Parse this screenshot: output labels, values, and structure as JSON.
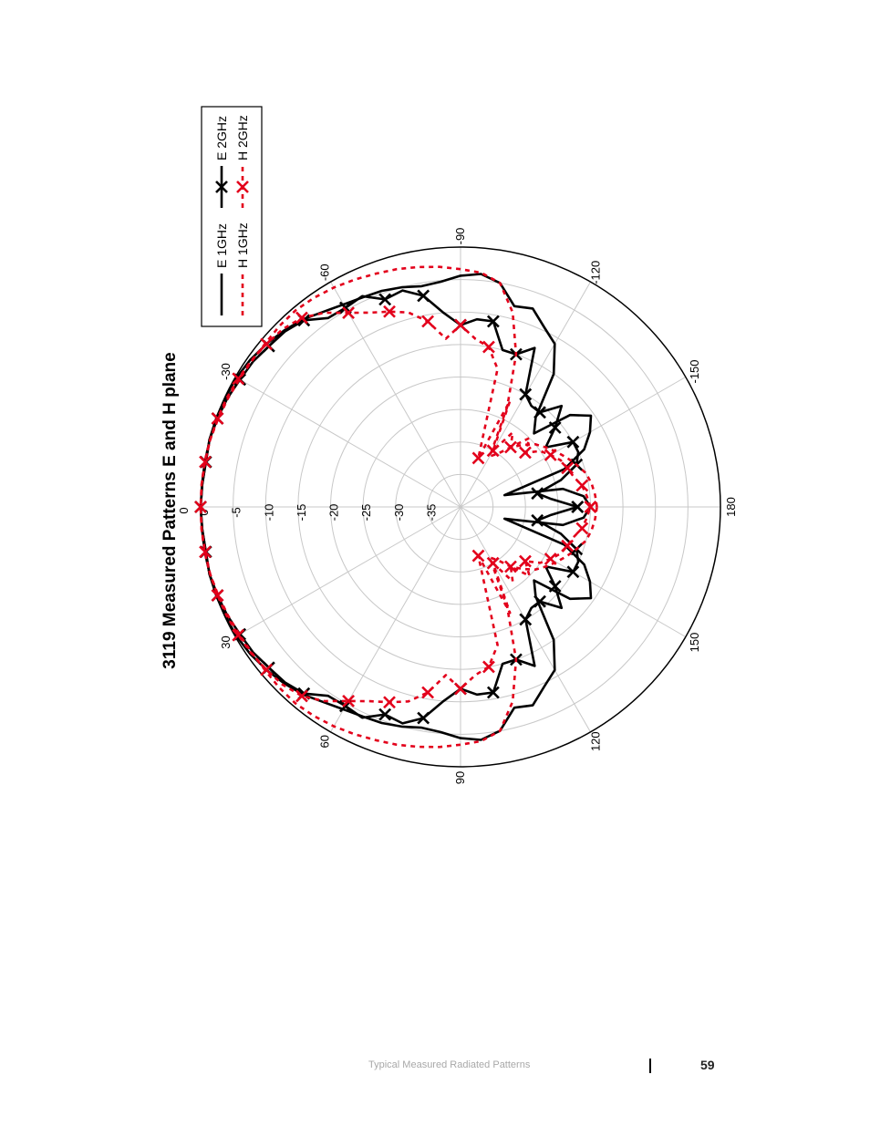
{
  "chart_data": {
    "type": "polar",
    "title": "3119 Measured Patterns E and H plane",
    "radial_ticks": [
      "0",
      "-5",
      "-10",
      "-15",
      "-20",
      "-25",
      "-30",
      "-35"
    ],
    "radial_range": [
      -40,
      0
    ],
    "angular_ticks": [
      "0",
      "30",
      "60",
      "90",
      "120",
      "150",
      "180",
      "-150",
      "-120",
      "-90",
      "-60",
      "-30"
    ],
    "angular_tick_values": [
      0,
      30,
      60,
      90,
      120,
      150,
      180,
      -150,
      -120,
      -90,
      -60,
      -30
    ],
    "grid": true,
    "legend_position": "top-right",
    "legend": [
      {
        "key": "e1",
        "label": "E 1GHz"
      },
      {
        "key": "e2",
        "label": "E 2GHz"
      },
      {
        "key": "h1",
        "label": "H 1GHz"
      },
      {
        "key": "h2",
        "label": "H 2GHz"
      }
    ],
    "series": [
      {
        "key": "e1",
        "name": "E 1GHz",
        "color": "#000000",
        "dash": "solid",
        "marker": "none",
        "angles": [
          -180,
          -175,
          -170,
          -165,
          -160,
          -155,
          -150,
          -145,
          -140,
          -135,
          -130,
          -125,
          -120,
          -115,
          -110,
          -105,
          -100,
          -95,
          -90,
          -85,
          -80,
          -75,
          -70,
          -65,
          -60,
          -55,
          -50,
          -45,
          -40,
          -35,
          -30,
          -25,
          -20,
          -15,
          -10,
          -5,
          0,
          5,
          10,
          15,
          20,
          25,
          30,
          35,
          40,
          45,
          50,
          55,
          60,
          65,
          70,
          75,
          80,
          85,
          90,
          95,
          100,
          105,
          110,
          115,
          120,
          125,
          130,
          135,
          140,
          145,
          150,
          155,
          160,
          165,
          170,
          175,
          180
        ],
        "values": [
          -20,
          -21,
          -24,
          -33,
          -23,
          -19,
          -17,
          -15.5,
          -18,
          -24,
          -22,
          -15,
          -11,
          -9.5,
          -7.5,
          -8,
          -5,
          -4,
          -4.4,
          -5.2,
          -5.5,
          -5,
          -4.6,
          -4.4,
          -4,
          -3.3,
          -2.3,
          -1.6,
          -1,
          -0.5,
          -0.2,
          -0.1,
          0,
          0,
          -0.2,
          -0.1,
          0,
          -0.1,
          -0.2,
          0,
          0,
          -0.1,
          -0.2,
          -0.5,
          -1,
          -1.6,
          -2.3,
          -3.3,
          -4,
          -4.4,
          -4.6,
          -5,
          -5.5,
          -5.2,
          -4.4,
          -4,
          -5,
          -8,
          -7.5,
          -9.5,
          -11,
          -15,
          -22,
          -24,
          -18,
          -15.5,
          -17,
          -19,
          -23,
          -33,
          -24,
          -21,
          -20
        ]
      },
      {
        "key": "e2",
        "name": "E 2GHz",
        "color": "#000000",
        "dash": "solid",
        "marker": "x",
        "angles": [
          -180,
          -175,
          -170,
          -165,
          -160,
          -155,
          -150,
          -145,
          -140,
          -135,
          -130,
          -125,
          -120,
          -115,
          -110,
          -105,
          -100,
          -95,
          -90,
          -85,
          -80,
          -75,
          -70,
          -65,
          -60,
          -55,
          -50,
          -45,
          -40,
          -35,
          -30,
          -25,
          -20,
          -15,
          -10,
          -5,
          0,
          5,
          10,
          15,
          20,
          25,
          30,
          35,
          40,
          45,
          50,
          55,
          60,
          65,
          70,
          75,
          80,
          85,
          90,
          95,
          100,
          105,
          110,
          115,
          120,
          125,
          130,
          135,
          140,
          145,
          150,
          155,
          160,
          165,
          170,
          175,
          180
        ],
        "values": [
          -22,
          -26,
          -28,
          -24,
          -21,
          -20,
          -20,
          -24,
          -21,
          -18,
          -21,
          -21,
          -20,
          -13,
          -15,
          -15,
          -11,
          -11,
          -12,
          -10,
          -7,
          -5.5,
          -6,
          -4.2,
          -4.6,
          -4.5,
          -2.5,
          -1.8,
          -1.5,
          -1,
          -0.8,
          -0.4,
          -0.2,
          0,
          -0.2,
          -0.1,
          0,
          -0.1,
          -0.2,
          0,
          -0.2,
          -0.4,
          -0.8,
          -1,
          -1.5,
          -1.8,
          -2.5,
          -4.5,
          -4.6,
          -4.2,
          -6,
          -5.5,
          -7,
          -10,
          -12,
          -11,
          -11,
          -15,
          -15,
          -13,
          -20,
          -21,
          -21,
          -18,
          -21,
          -24,
          -20,
          -20,
          -21,
          -24,
          -28,
          -26,
          -22
        ]
      },
      {
        "key": "h1",
        "name": "H 1GHz",
        "color": "#e3001b",
        "dash": "dashed",
        "marker": "none",
        "angles": [
          -180,
          -175,
          -170,
          -165,
          -160,
          -155,
          -150,
          -145,
          -140,
          -135,
          -130,
          -125,
          -120,
          -115,
          -110,
          -105,
          -100,
          -95,
          -90,
          -85,
          -80,
          -75,
          -70,
          -65,
          -60,
          -55,
          -50,
          -45,
          -40,
          -35,
          -30,
          -25,
          -20,
          -15,
          -10,
          -5,
          0,
          5,
          10,
          15,
          20,
          25,
          30,
          35,
          40,
          45,
          50,
          55,
          60,
          65,
          70,
          75,
          80,
          85,
          90,
          95,
          100,
          105,
          110,
          115,
          120,
          125,
          130,
          135,
          140,
          145,
          150,
          155,
          160,
          165,
          170,
          175,
          180
        ],
        "values": [
          -19,
          -19.2,
          -19.5,
          -20,
          -21,
          -22,
          -23,
          -24,
          -25,
          -26.5,
          -28,
          -30,
          -31,
          -23,
          -15,
          -9,
          -5,
          -3.8,
          -3.4,
          -2.9,
          -2.5,
          -2.1,
          -1.8,
          -1.4,
          -1,
          -0.7,
          -0.5,
          -0.6,
          -0.8,
          -0.8,
          -0.7,
          -0.5,
          -0.3,
          -0.1,
          0,
          0,
          0,
          0,
          0,
          -0.1,
          -0.3,
          -0.5,
          -0.7,
          -0.8,
          -0.8,
          -0.6,
          -0.5,
          -0.7,
          -1,
          -1.4,
          -1.8,
          -2.1,
          -2.5,
          -2.9,
          -3.4,
          -3.8,
          -5,
          -9,
          -15,
          -23,
          -31,
          -30,
          -28,
          -26.5,
          -25,
          -24,
          -23,
          -22,
          -21,
          -20,
          -19.5,
          -19.2,
          -19
        ]
      },
      {
        "key": "h2",
        "name": "H 2GHz",
        "color": "#e3001b",
        "dash": "dashed",
        "marker": "x",
        "angles": [
          -180,
          -175,
          -170,
          -165,
          -160,
          -155,
          -150,
          -145,
          -140,
          -135,
          -130,
          -125,
          -120,
          -115,
          -110,
          -105,
          -100,
          -95,
          -90,
          -85,
          -80,
          -75,
          -70,
          -65,
          -60,
          -55,
          -50,
          -45,
          -40,
          -35,
          -30,
          -25,
          -20,
          -15,
          -10,
          -5,
          0,
          5,
          10,
          15,
          20,
          25,
          30,
          35,
          40,
          45,
          50,
          55,
          60,
          65,
          70,
          75,
          80,
          85,
          90,
          95,
          100,
          105,
          110,
          115,
          120,
          125,
          130,
          135,
          140,
          145,
          150,
          155,
          160,
          165,
          170,
          175,
          180
        ],
        "values": [
          -20,
          -20.5,
          -21,
          -22,
          -22.5,
          -23,
          -24,
          -25,
          -27,
          -25,
          -28,
          -26,
          -30,
          -22,
          -32,
          -18,
          -15,
          -14,
          -12,
          -14,
          -11,
          -9,
          -8,
          -7,
          -5.5,
          -3.5,
          -2,
          -1.3,
          -1,
          -0.7,
          -0.5,
          -0.3,
          -0.2,
          -0.1,
          -0.1,
          0,
          0,
          0,
          -0.1,
          -0.1,
          -0.2,
          -0.3,
          -0.5,
          -0.7,
          -1,
          -1.3,
          -2,
          -3.5,
          -5.5,
          -7,
          -8,
          -9,
          -11,
          -14,
          -12,
          -14,
          -15,
          -18,
          -32,
          -22,
          -30,
          -26,
          -28,
          -25,
          -27,
          -25,
          -24,
          -23,
          -22.5,
          -22,
          -21,
          -20.5,
          -20
        ]
      }
    ]
  },
  "footer": {
    "section_title": "Typical Measured Radiated Patterns",
    "page_number": "59"
  }
}
